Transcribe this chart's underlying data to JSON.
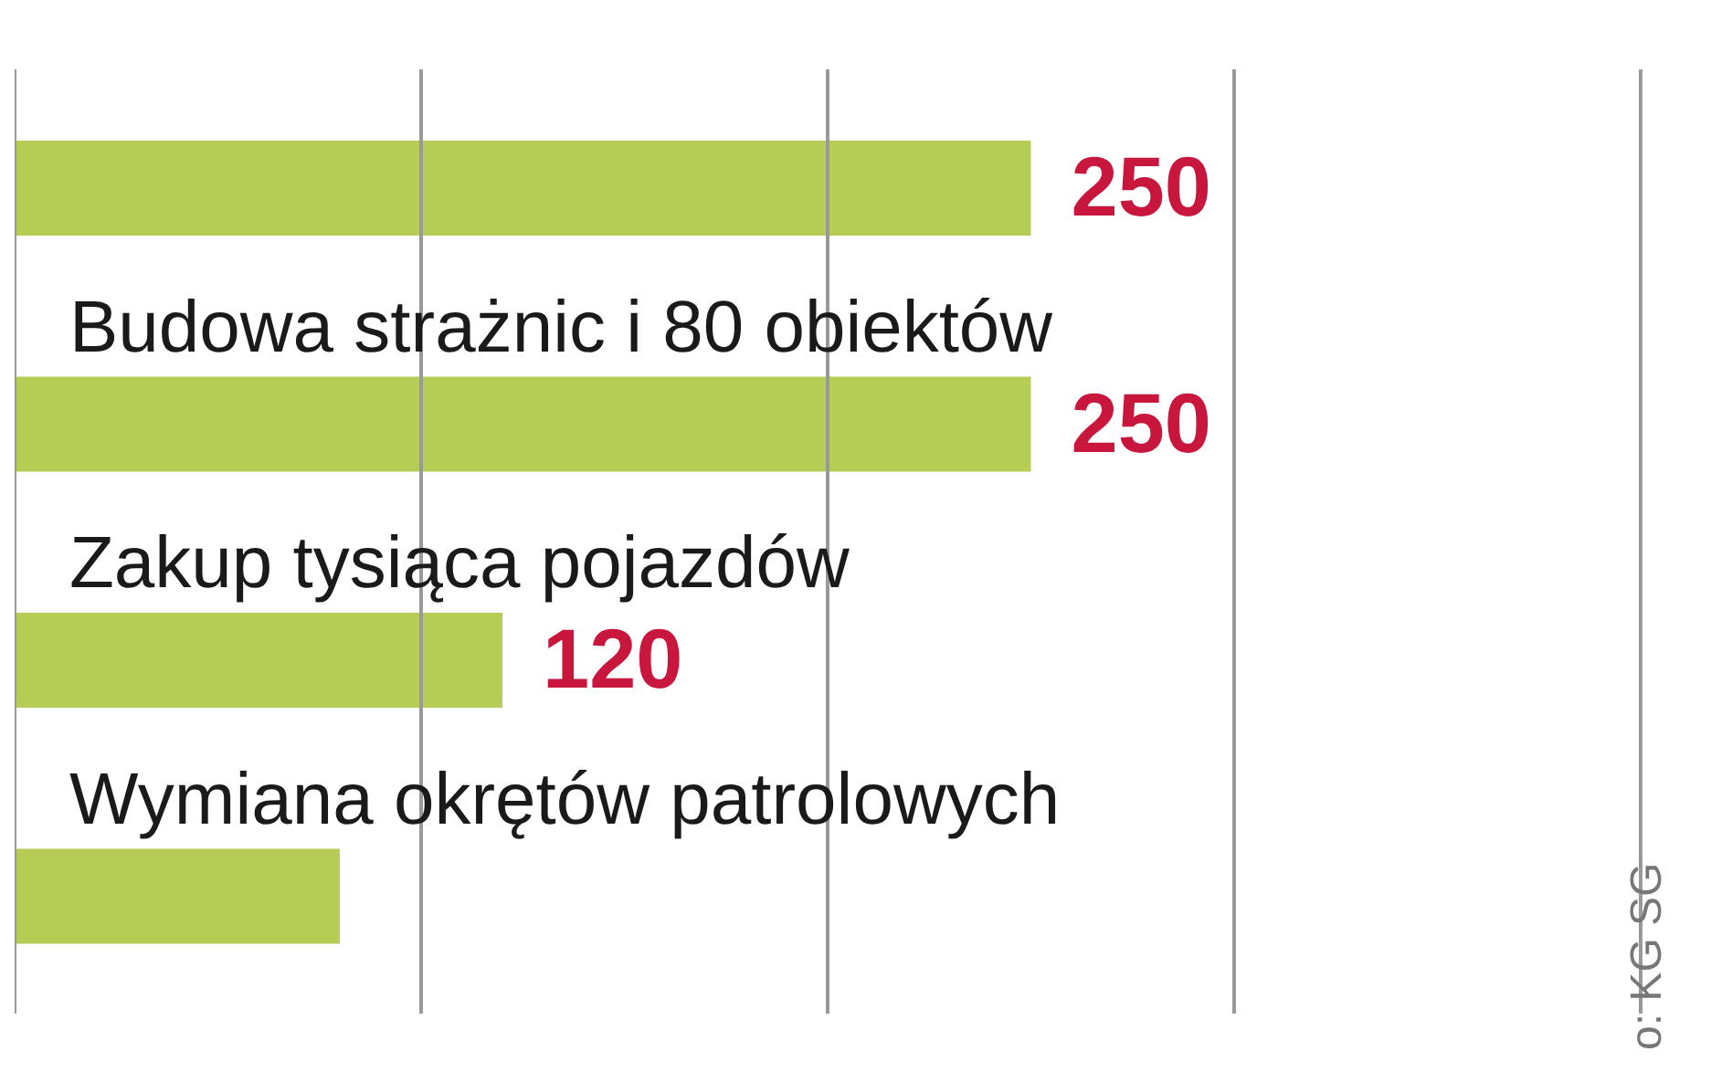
{
  "chart_data": {
    "type": "bar",
    "orientation": "horizontal",
    "categories": [
      null,
      "Budowa strażnic i 80 obiektów",
      "Zakup tysiąca pojazdów",
      "Wymiana okrętów patrolowych"
    ],
    "values": [
      250,
      250,
      120,
      80
    ],
    "value_labels": [
      "250",
      "250",
      "120",
      null
    ],
    "color": "#b5cc55",
    "xlim": [
      0,
      400
    ],
    "xticks": [
      {
        "value": 0,
        "label": null
      },
      {
        "value": 100,
        "label": null
      },
      {
        "value": 200,
        "label": null
      },
      {
        "value": 300,
        "label": null
      },
      {
        "value": 400,
        "label": null
      }
    ],
    "grid": "x",
    "annotations": [
      "o: KG SG"
    ]
  }
}
